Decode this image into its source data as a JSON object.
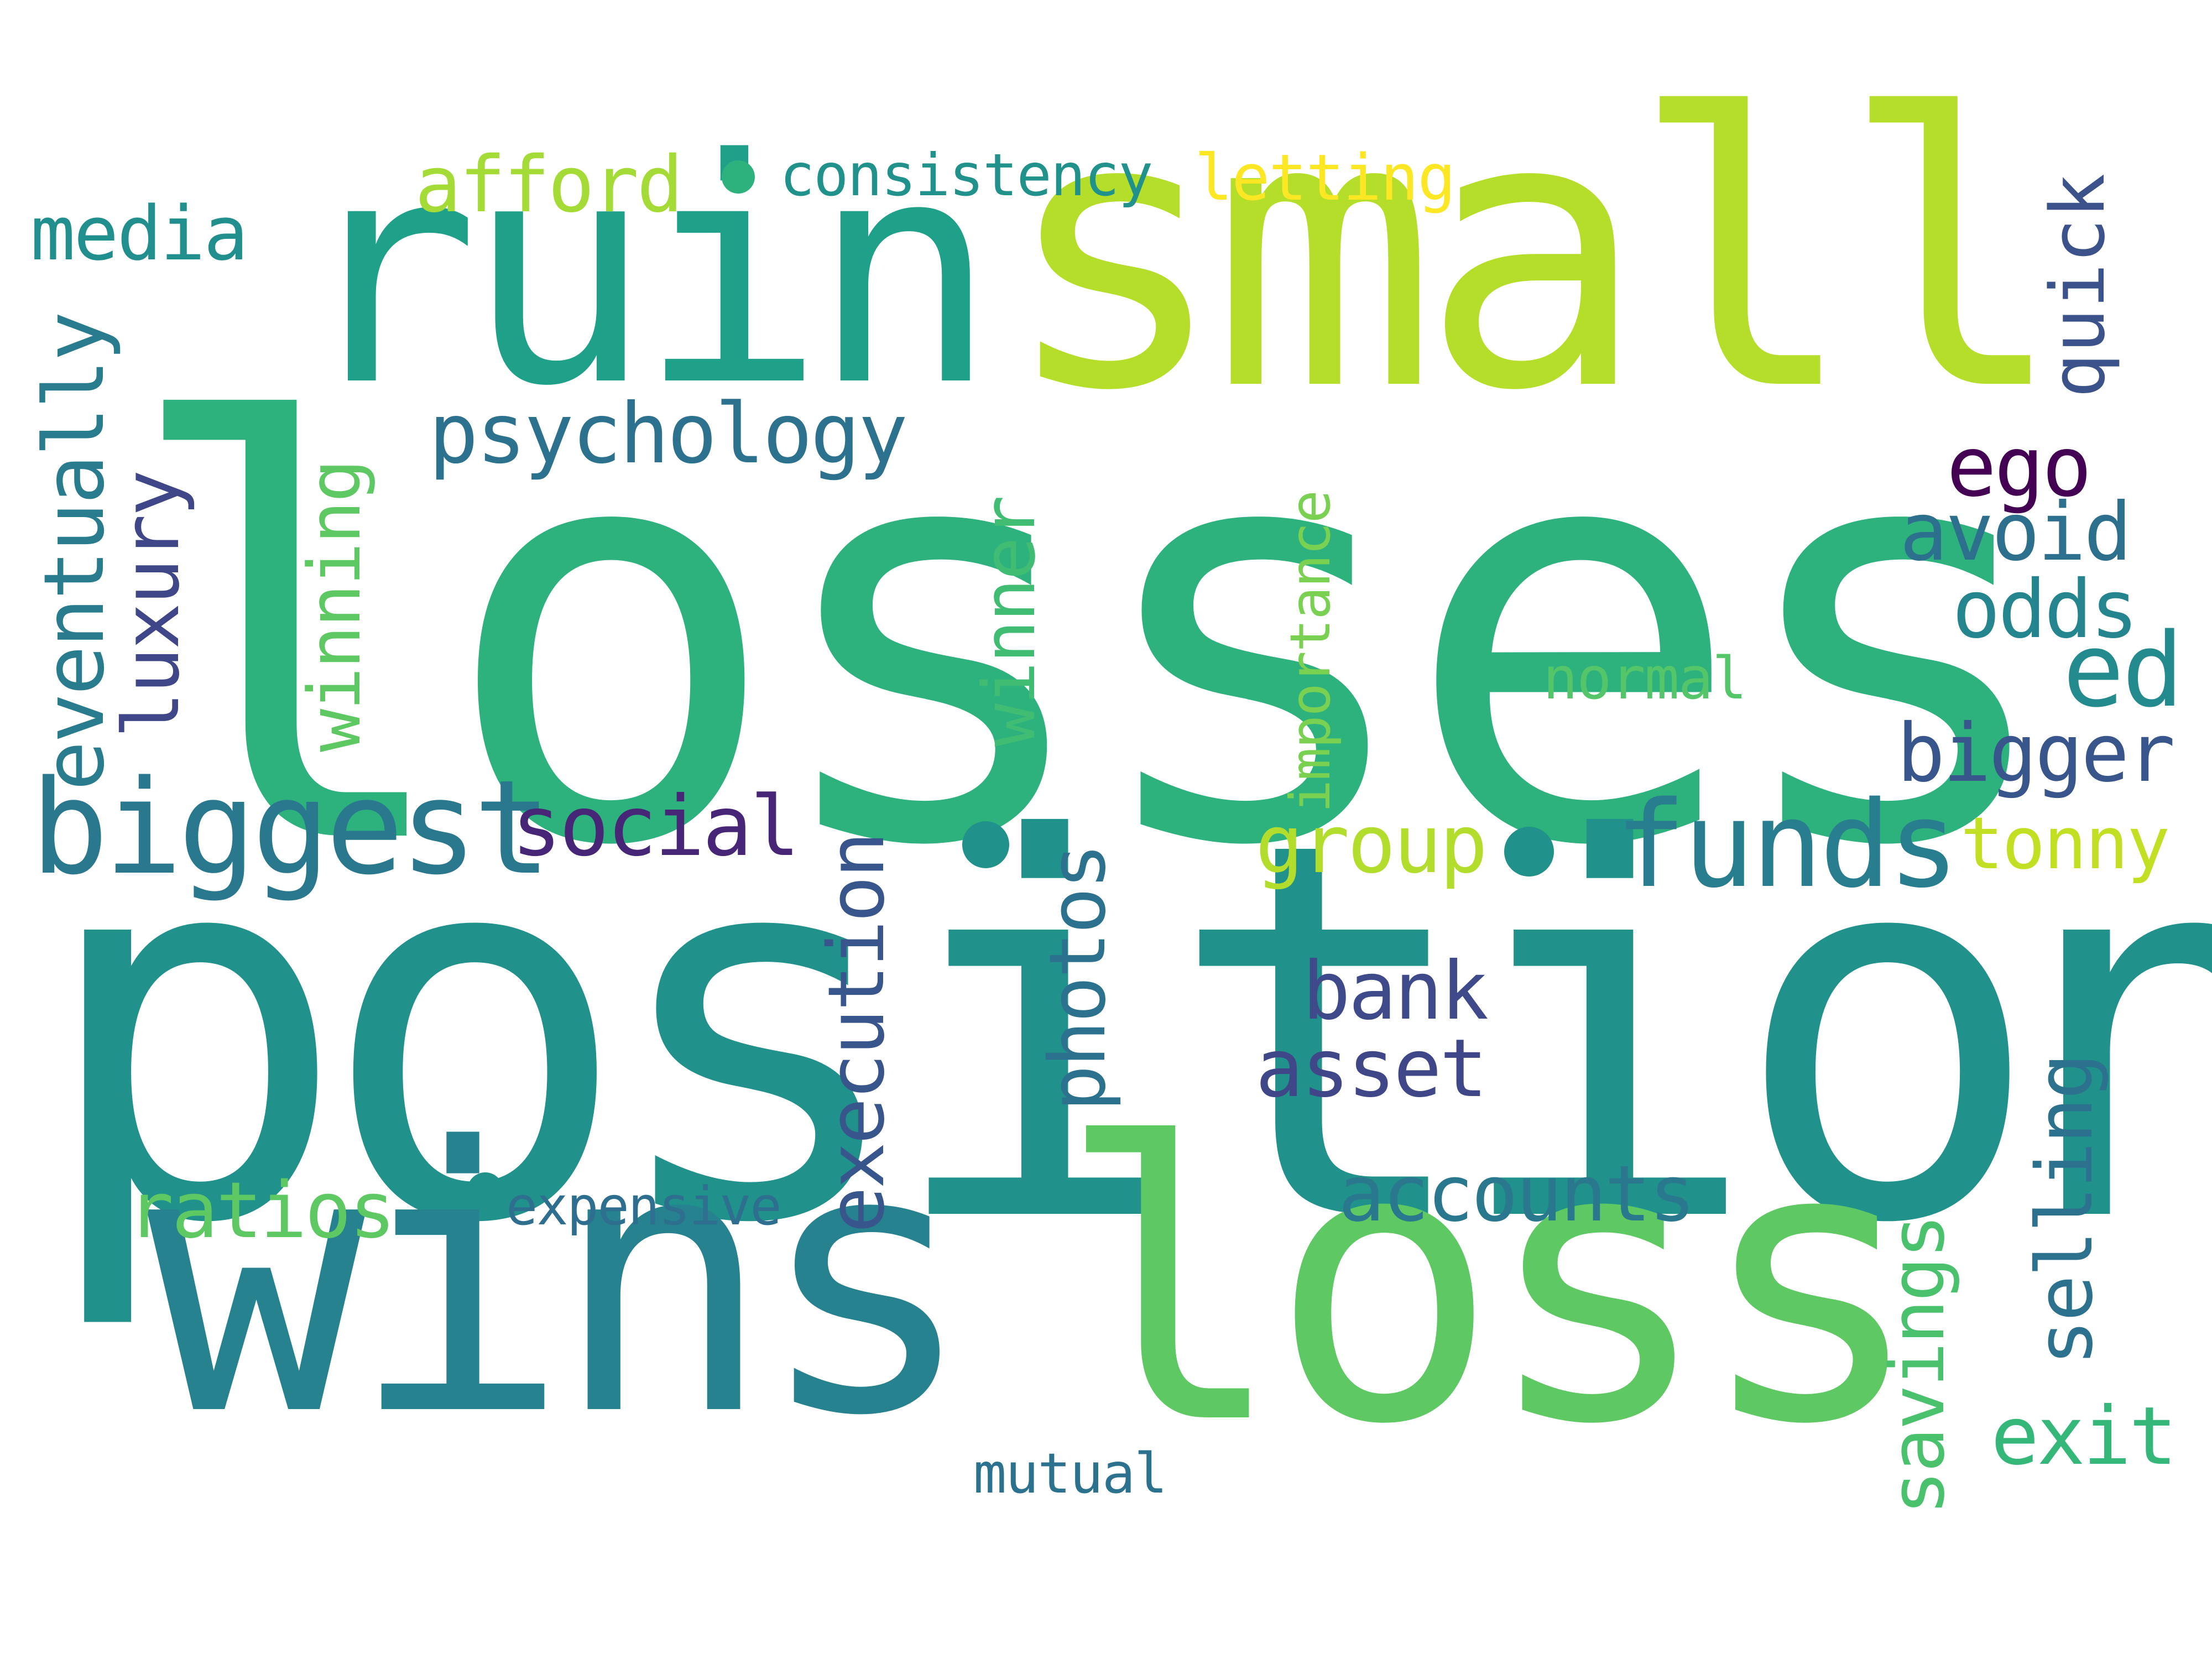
{
  "words": [
    {
      "text": "losses",
      "color": "#2db27d",
      "rotated": false
    },
    {
      "text": "position",
      "color": "#21918c",
      "rotated": false
    },
    {
      "text": "small",
      "color": "#b5de2b",
      "rotated": false
    },
    {
      "text": "ruin",
      "color": "#1fa088",
      "rotated": false
    },
    {
      "text": "wins",
      "color": "#26828e",
      "rotated": false
    },
    {
      "text": "loss",
      "color": "#5ec962",
      "rotated": false
    },
    {
      "text": "biggest",
      "color": "#2a788e",
      "rotated": false
    },
    {
      "text": "funds",
      "color": "#287d8e",
      "rotated": false
    },
    {
      "text": "psychology",
      "color": "#2c728e",
      "rotated": false
    },
    {
      "text": "afford",
      "color": "#a5db36",
      "rotated": false
    },
    {
      "text": "consistency",
      "color": "#21918c",
      "rotated": false
    },
    {
      "text": "letting",
      "color": "#fde725",
      "rotated": false
    },
    {
      "text": "media",
      "color": "#218f8d",
      "rotated": false
    },
    {
      "text": "ego",
      "color": "#440154",
      "rotated": true
    },
    {
      "text": "avoid",
      "color": "#2d708e",
      "rotated": false
    },
    {
      "text": "quick",
      "color": "#3b528b",
      "rotated": false
    },
    {
      "text": "ed",
      "color": "#238a8d",
      "rotated": false
    },
    {
      "text": "odds",
      "color": "#25858e",
      "rotated": false
    },
    {
      "text": "normal",
      "color": "#54c568",
      "rotated": false
    },
    {
      "text": "bigger",
      "color": "#39568c",
      "rotated": false
    },
    {
      "text": "tonny",
      "color": "#c2df23",
      "rotated": false
    },
    {
      "text": "group",
      "color": "#b2dd2d",
      "rotated": false
    },
    {
      "text": "social",
      "color": "#482677",
      "rotated": false
    },
    {
      "text": "bank",
      "color": "#3e4a89",
      "rotated": false
    },
    {
      "text": "asset",
      "color": "#3f4788",
      "rotated": false
    },
    {
      "text": "accounts",
      "color": "#2a788e",
      "rotated": false
    },
    {
      "text": "ratios",
      "color": "#5ec962",
      "rotated": false
    },
    {
      "text": "expensive",
      "color": "#2e6e8e",
      "rotated": false
    },
    {
      "text": "exit",
      "color": "#35b779",
      "rotated": false
    },
    {
      "text": "mutual",
      "color": "#2c728e",
      "rotated": false
    },
    {
      "text": "eventually",
      "color": "#287c8e",
      "rotated": true
    },
    {
      "text": "luxury",
      "color": "#3f4788",
      "rotated": true
    },
    {
      "text": "winning",
      "color": "#5ec962",
      "rotated": true
    },
    {
      "text": "winner",
      "color": "#40bd72",
      "rotated": true
    },
    {
      "text": "importance",
      "color": "#7ad151",
      "rotated": true
    },
    {
      "text": "execution",
      "color": "#39568c",
      "rotated": true
    },
    {
      "text": "photos",
      "color": "#2c728e",
      "rotated": true
    },
    {
      "text": "savings",
      "color": "#4ac16d",
      "rotated": true
    },
    {
      "text": "selling",
      "color": "#2c728e",
      "rotated": true
    }
  ],
  "dots": [
    {
      "color": "#2db27d"
    },
    {
      "color": "#21918c"
    },
    {
      "color": "#21918c"
    },
    {
      "color": "#21918c"
    }
  ]
}
